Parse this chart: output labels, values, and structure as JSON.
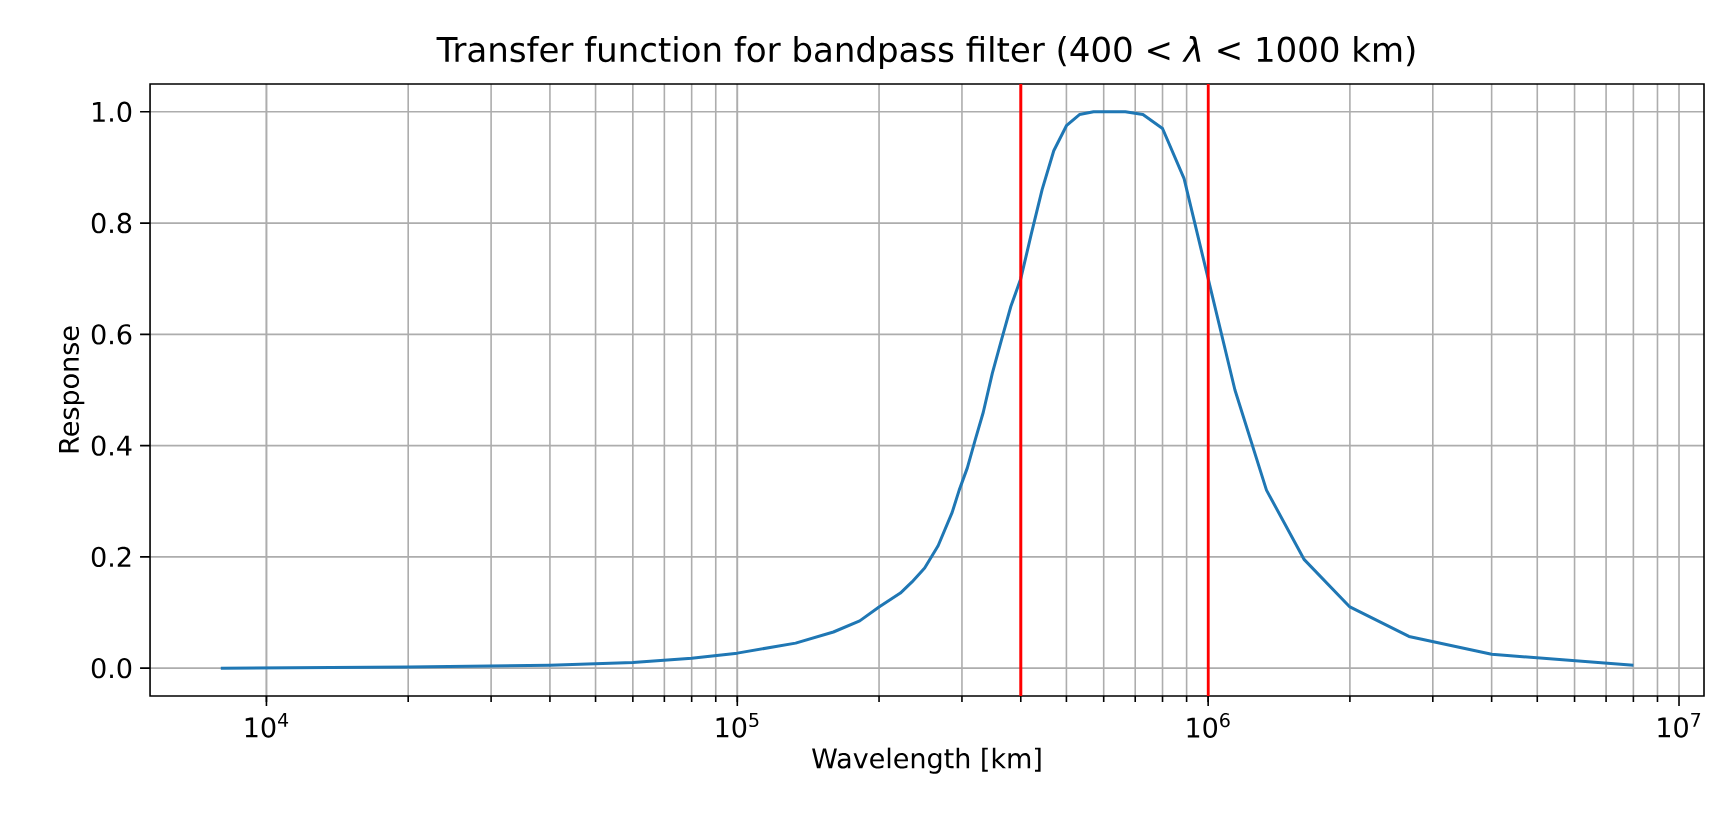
{
  "chart_data": {
    "type": "line",
    "title": "Transfer function for bandpass filter (400 < *λ* < 1000 km)",
    "xlabel": "Wavelength [km]",
    "ylabel": "Response",
    "x": [
      8000,
      20000,
      40000,
      60000,
      80000,
      100000,
      133000,
      160000,
      182000,
      200000,
      222000,
      235000,
      250000,
      267000,
      286000,
      296000,
      308000,
      320000,
      333000,
      348000,
      364000,
      381000,
      400000,
      421000,
      444000,
      470000,
      500000,
      533000,
      571000,
      615000,
      667000,
      727000,
      800000,
      889000,
      1000000,
      1140000,
      1330000,
      1600000,
      2000000,
      2670000,
      4000000,
      8000000
    ],
    "series": [
      {
        "color": "#1f77b4",
        "values": [
          0.0,
          0.002,
          0.005,
          0.01,
          0.018,
          0.027,
          0.045,
          0.065,
          0.085,
          0.11,
          0.135,
          0.155,
          0.18,
          0.22,
          0.28,
          0.32,
          0.36,
          0.41,
          0.46,
          0.53,
          0.59,
          0.65,
          0.7,
          0.78,
          0.86,
          0.93,
          0.975,
          0.995,
          1.0,
          1.0,
          1.0,
          0.995,
          0.97,
          0.88,
          0.7,
          0.5,
          0.32,
          0.195,
          0.11,
          0.057,
          0.025,
          0.005
        ]
      }
    ],
    "log": "x",
    "xlim": [
      5660,
      11300000
    ],
    "ylim": [
      -0.05,
      1.05
    ],
    "xticks": [
      {
        "value": 10000,
        "label": "10$^{4}$"
      },
      {
        "value": 100000,
        "label": "10$^{5}$"
      },
      {
        "value": 1000000,
        "label": "10$^{6}$"
      },
      {
        "value": 10000000,
        "label": "10$^{7}$"
      }
    ],
    "yticks": [
      {
        "value": 0,
        "label": "0.0"
      },
      0.2,
      0.4,
      0.6,
      0.8,
      {
        "value": 1,
        "label": "1.0"
      }
    ],
    "grid": true,
    "ref_lines": [
      {
        "axis": "x",
        "value": 400000,
        "color": "#ff0000"
      },
      {
        "axis": "x",
        "value": 1000000,
        "color": "#ff0000"
      }
    ]
  }
}
